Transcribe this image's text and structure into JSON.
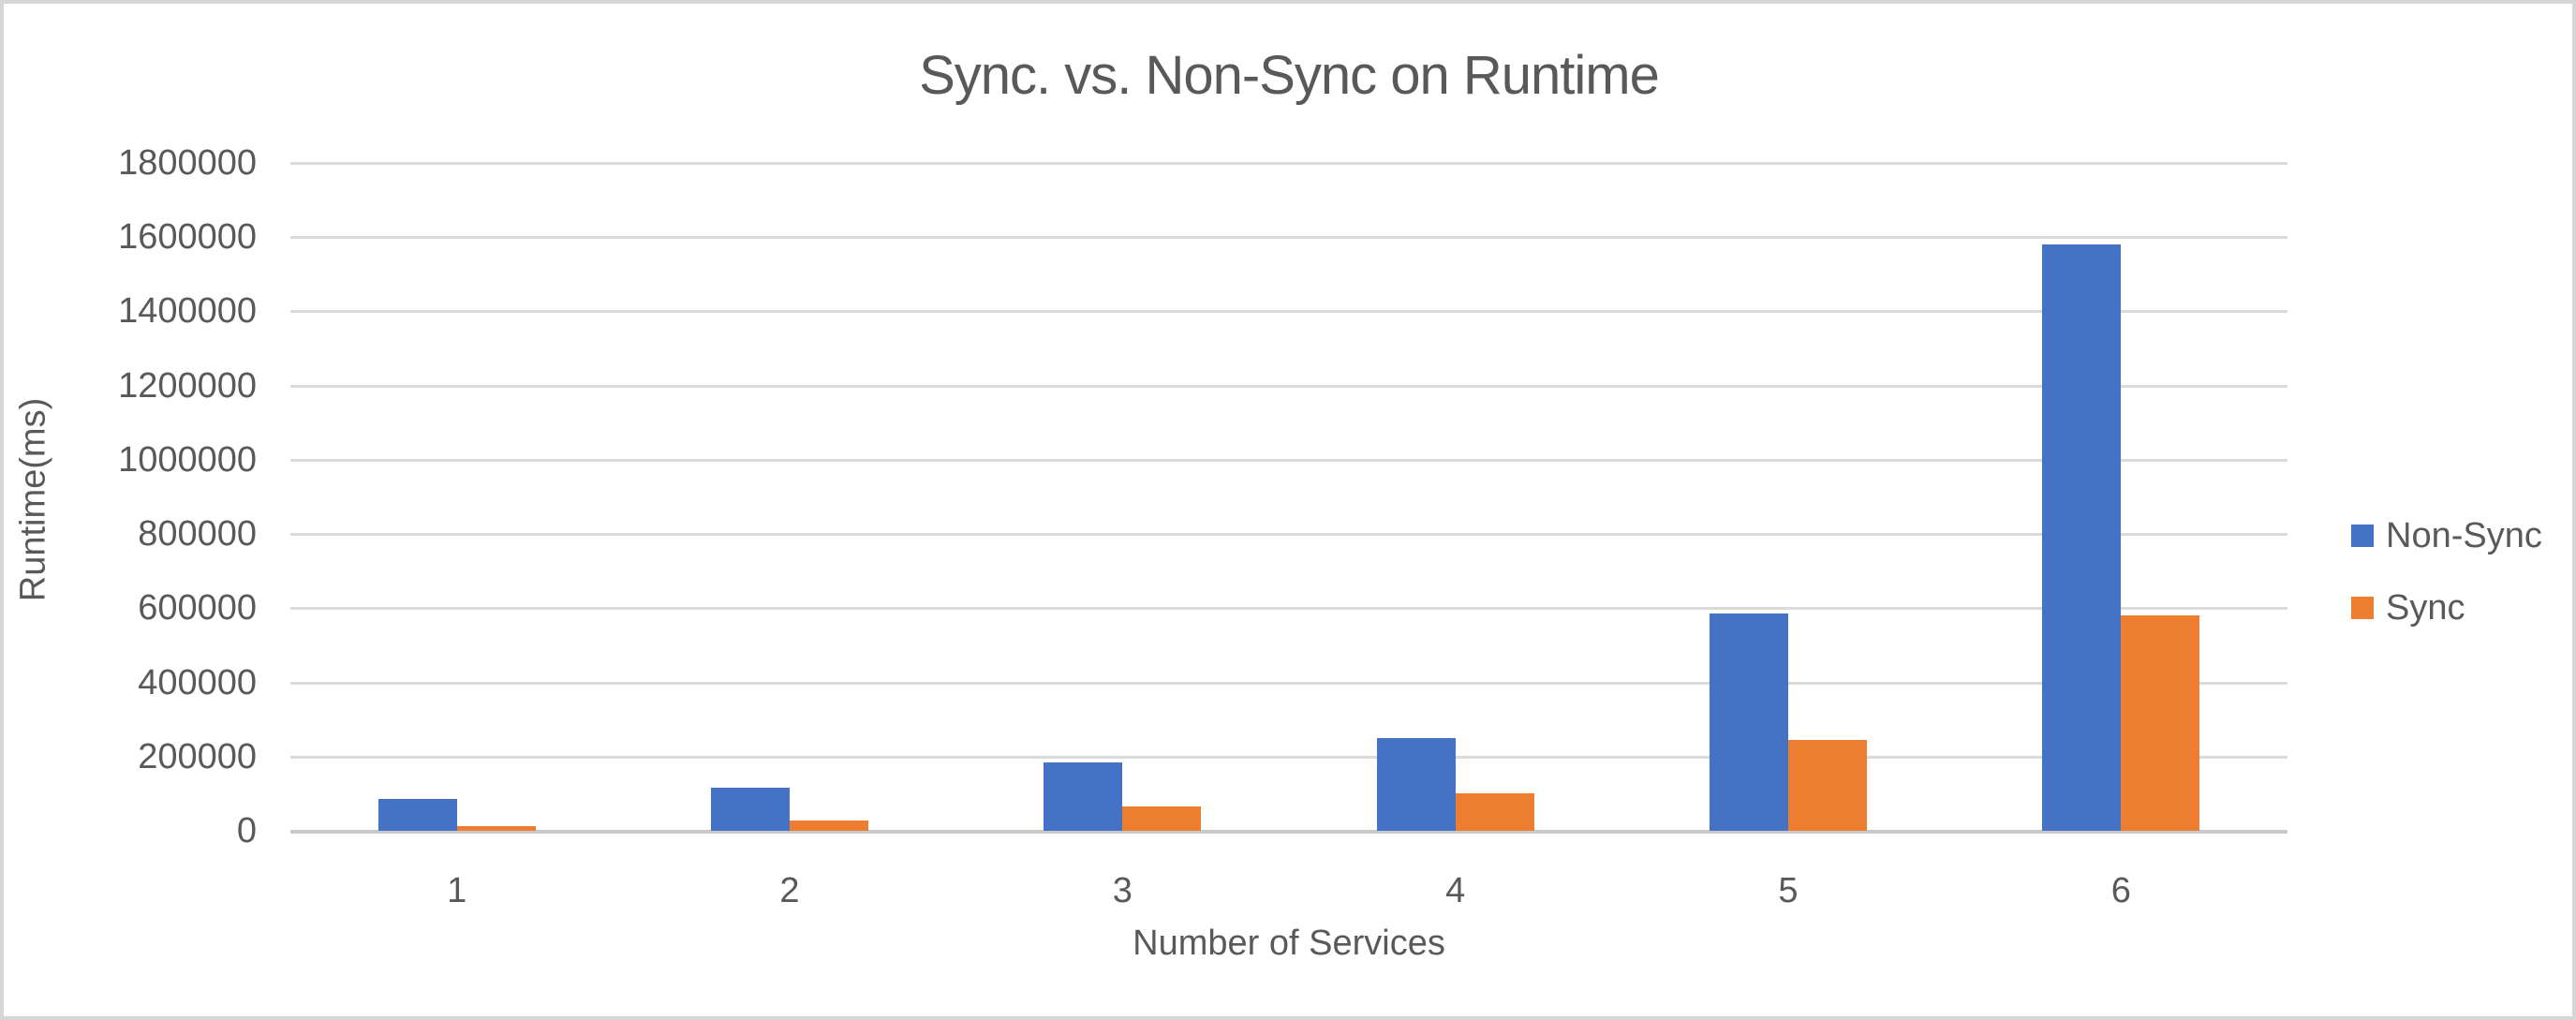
{
  "chart": {
    "title": "Sync. vs. Non-Sync on Runtime",
    "x_axis_title": "Number of Services",
    "y_axis_title": "Runtime(ms)"
  },
  "chart_data": {
    "type": "bar",
    "title": "Sync. vs. Non-Sync on Runtime",
    "xlabel": "Number of Services",
    "ylabel": "Runtime(ms)",
    "categories": [
      "1",
      "2",
      "3",
      "4",
      "5",
      "6"
    ],
    "series": [
      {
        "name": "Non-Sync",
        "color": "#4472C4",
        "values": [
          85000,
          115000,
          185000,
          250000,
          585000,
          1580000
        ]
      },
      {
        "name": "Sync",
        "color": "#ED7D31",
        "values": [
          12000,
          28000,
          65000,
          100000,
          245000,
          580000
        ]
      }
    ],
    "ylim": [
      0,
      1800000
    ],
    "ytick_interval": 200000,
    "ytick_labels": [
      "0",
      "200000",
      "400000",
      "600000",
      "800000",
      "1000000",
      "1200000",
      "1400000",
      "1600000",
      "1800000"
    ],
    "grid": true,
    "legend_position": "right",
    "bar_gap_within_cluster": 0
  },
  "colors": {
    "non_sync": "#4472C4",
    "sync": "#ED7D31",
    "gridline": "#DADADA",
    "axis_line": "#C9C9C9",
    "text": "#595959",
    "border": "#D6D6D6",
    "background": "#FFFFFF"
  }
}
